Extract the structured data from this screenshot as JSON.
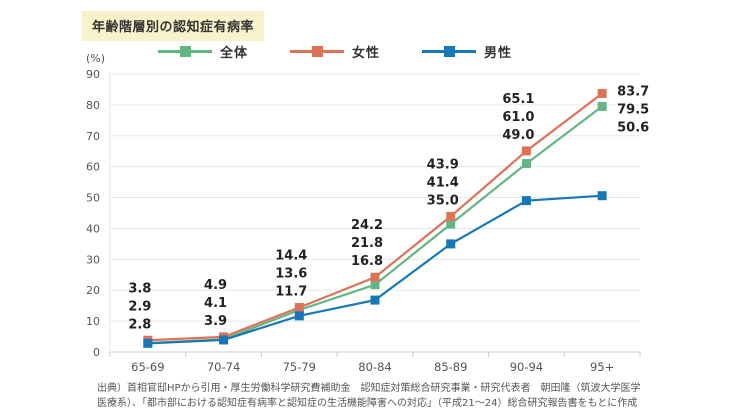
{
  "title": "年齢階層別の認知症有病率",
  "y_axis_unit_label": "(%)",
  "chart_data": {
    "type": "line",
    "title": "年齢階層別の認知症有病率",
    "categories": [
      "65-69",
      "70-74",
      "75-79",
      "80-84",
      "85-89",
      "90-94",
      "95+"
    ],
    "series": [
      {
        "name": "全体",
        "color": "#63b583",
        "values": [
          2.9,
          4.1,
          13.6,
          21.8,
          41.4,
          61.0,
          79.5
        ]
      },
      {
        "name": "女性",
        "color": "#dd7257",
        "values": [
          3.8,
          4.9,
          14.4,
          24.2,
          43.9,
          65.1,
          83.7
        ]
      },
      {
        "name": "男性",
        "color": "#1878b6",
        "values": [
          2.8,
          3.9,
          11.7,
          16.8,
          35.0,
          49.0,
          50.6
        ]
      }
    ],
    "xlabel": "",
    "ylabel": "(%)",
    "ylim": [
      0,
      90
    ],
    "ytick_step": 10,
    "grid": "horizontal",
    "legend_position": "top",
    "data_labels_shown": true
  },
  "colors": {
    "title_background": "#f7f2c9",
    "grid_line": "#e7e7e7",
    "axis_line": "#cccccc",
    "tick_text": "#555555",
    "data_label_text": "#222222"
  },
  "footer": {
    "source_text": "出典）首相官邸HPから引用・厚生労働科学研究費補助金　認知症対策総合研究事業・研究代表者　朝田隆（筑波大学医学医療系）、「都市部における認知症有病率と認知症の生活機能障害への対応」（平成21～24）総合研究報告書をもとに作成"
  }
}
